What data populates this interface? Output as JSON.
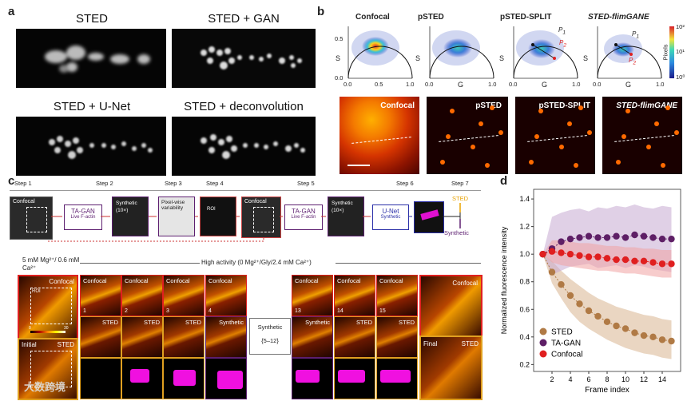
{
  "panel_a": {
    "label": "a",
    "titles": [
      "STED",
      "STED + GAN",
      "STED + U-Net",
      "STED + deconvolution"
    ]
  },
  "panel_b": {
    "label": "b",
    "phasor_titles": [
      "Confocal",
      "pSTED",
      "pSTED-SPLIT",
      "STED-flimGANE"
    ],
    "s_label": "S",
    "g_label": "G",
    "s_ticks": [
      "0.5",
      "0.0"
    ],
    "g_ticks": [
      "0.0",
      "0.5",
      "1.0"
    ],
    "p1": "P",
    "p1_sub": "1",
    "p2": "P",
    "p2_sub": "2",
    "colorbar_label": "Pixels",
    "colorbar_ticks": [
      "10²",
      "10¹",
      "10⁰"
    ],
    "image_titles": [
      "Confocal",
      "pSTED",
      "pSTED-SPLIT",
      "STED-flimGANE"
    ]
  },
  "panel_c": {
    "label": "c",
    "steps": [
      "Step 1",
      "Step 2",
      "Step 3",
      "Step 4",
      "Step 5",
      "Step 6",
      "Step 7"
    ],
    "boxes": {
      "confocal": "Confocal",
      "roi": "ROI",
      "tagan": "TA-GAN",
      "live_factin": "Live F-actin",
      "synthetic10": "Synthetic",
      "synthetic10_n": "(10×)",
      "pixelwise": "Pixel-wise variability",
      "unet": "U-Net",
      "unet_sub": "Synthetic",
      "out_sted": "STED",
      "out_synthetic": "Synthetic"
    },
    "condition_low": "5 mM Mg²⁺/ 0.6 mM Ca²⁺",
    "condition_high": "High activity (0 Mg²⁺/Gly/2.4 mM Ca²⁺)",
    "left_confocal": "Confocal",
    "left_roi": "ROI",
    "cbar_min": "0",
    "cbar_max": "30",
    "left_initial": "Initial",
    "left_sted": "STED",
    "tile_labels_top": [
      "Confocal",
      "Confocal",
      "Confocal",
      "Confocal"
    ],
    "tile_numbers": [
      "1",
      "2",
      "3",
      "4"
    ],
    "tile_labels_mid": [
      "STED",
      "STED",
      "STED",
      "Synthetic"
    ],
    "middle_box_title": "Synthetic",
    "middle_box_range": "{5–12}",
    "right_top": [
      "Confocal",
      "Confocal",
      "Confocal"
    ],
    "right_numbers": [
      "13",
      "14",
      "15"
    ],
    "right_mid": [
      "Synthetic",
      "STED",
      "STED"
    ],
    "far_right_confocal": "Confocal",
    "far_right_final": "Final",
    "far_right_sted": "STED"
  },
  "panel_d": {
    "label": "d",
    "watermark": "大数跨境"
  },
  "chart_data": {
    "type": "line",
    "xlabel": "Frame index",
    "ylabel": "Normalized fluorescence intensity",
    "xlim": [
      0,
      16
    ],
    "ylim": [
      0.15,
      1.47
    ],
    "xticks": [
      2,
      4,
      6,
      8,
      10,
      12,
      14
    ],
    "yticks": [
      0.2,
      0.4,
      0.6,
      0.8,
      1.0,
      1.2,
      1.4
    ],
    "legend_position": "bottom-left",
    "series": [
      {
        "name": "STED",
        "color": "#b07a45",
        "band": "#d9b48f",
        "x": [
          1,
          2,
          3,
          4,
          5,
          6,
          7,
          8,
          9,
          10,
          11,
          12,
          13,
          14,
          15
        ],
        "y": [
          1.0,
          0.87,
          0.78,
          0.7,
          0.64,
          0.59,
          0.55,
          0.51,
          0.48,
          0.46,
          0.43,
          0.41,
          0.4,
          0.38,
          0.37
        ],
        "upper": [
          1.0,
          0.95,
          0.88,
          0.82,
          0.77,
          0.72,
          0.68,
          0.65,
          0.62,
          0.6,
          0.58,
          0.56,
          0.55,
          0.53,
          0.52
        ],
        "lower": [
          1.0,
          0.79,
          0.68,
          0.58,
          0.51,
          0.46,
          0.42,
          0.38,
          0.35,
          0.32,
          0.3,
          0.28,
          0.27,
          0.25,
          0.24
        ]
      },
      {
        "name": "TA-GAN",
        "color": "#5e1f66",
        "band": "#c7aad1",
        "x": [
          1,
          2,
          3,
          4,
          5,
          6,
          7,
          8,
          9,
          10,
          11,
          12,
          13,
          14,
          15
        ],
        "y": [
          1.0,
          1.04,
          1.09,
          1.11,
          1.12,
          1.13,
          1.12,
          1.12,
          1.13,
          1.12,
          1.14,
          1.13,
          1.12,
          1.11,
          1.11
        ],
        "upper": [
          1.0,
          1.27,
          1.3,
          1.32,
          1.33,
          1.31,
          1.34,
          1.33,
          1.35,
          1.34,
          1.36,
          1.34,
          1.33,
          1.35,
          1.34
        ],
        "lower": [
          1.0,
          0.85,
          0.88,
          0.91,
          0.92,
          0.93,
          0.9,
          0.91,
          0.92,
          0.9,
          0.92,
          0.91,
          0.89,
          0.88,
          0.87
        ]
      },
      {
        "name": "Confocal",
        "color": "#e01f1f",
        "band": "#f1a3a3",
        "x": [
          1,
          2,
          3,
          4,
          5,
          6,
          7,
          8,
          9,
          10,
          11,
          12,
          13,
          14,
          15
        ],
        "y": [
          1.0,
          1.02,
          1.01,
          1.0,
          0.99,
          0.98,
          0.98,
          0.97,
          0.96,
          0.96,
          0.95,
          0.95,
          0.94,
          0.93,
          0.93
        ],
        "upper": [
          1.0,
          1.1,
          1.1,
          1.09,
          1.08,
          1.08,
          1.07,
          1.06,
          1.06,
          1.05,
          1.05,
          1.04,
          1.04,
          1.03,
          1.03
        ],
        "lower": [
          1.0,
          0.94,
          0.92,
          0.91,
          0.9,
          0.89,
          0.88,
          0.88,
          0.87,
          0.86,
          0.86,
          0.85,
          0.84,
          0.83,
          0.83
        ]
      }
    ]
  }
}
